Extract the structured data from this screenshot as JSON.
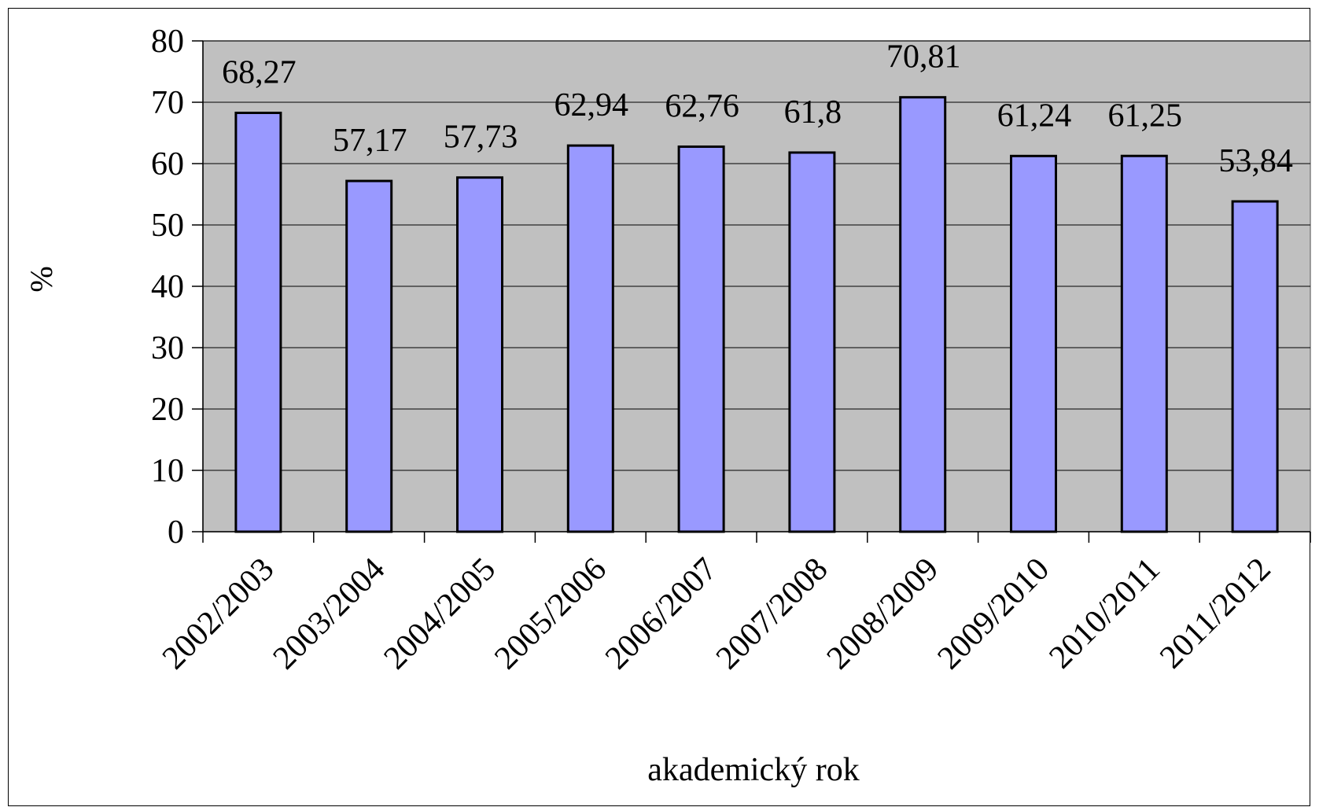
{
  "chart_data": {
    "type": "bar",
    "categories": [
      "2002/2003",
      "2003/2004",
      "2004/2005",
      "2005/2006",
      "2006/2007",
      "2007/2008",
      "2008/2009",
      "2009/2010",
      "2010/2011",
      "2011/2012"
    ],
    "values": [
      68.27,
      57.17,
      57.73,
      62.94,
      62.76,
      61.8,
      70.81,
      61.24,
      61.25,
      53.84
    ],
    "value_labels": [
      "68,27",
      "57,17",
      "57,73",
      "62,94",
      "62,76",
      "61,8",
      "70,81",
      "61,24",
      "61,25",
      "53,84"
    ],
    "xlabel": "akademický rok",
    "ylabel": "%",
    "ylim": [
      0,
      80
    ],
    "yticks": [
      0,
      10,
      20,
      30,
      40,
      50,
      60,
      70,
      80
    ],
    "ytick_labels": [
      "0",
      "10",
      "20",
      "30",
      "40",
      "50",
      "60",
      "70",
      "80"
    ],
    "grid": true,
    "legend": "none",
    "colors": {
      "bar": "#9999ff",
      "plot_background": "#c0c0c0",
      "gridline": "#000000"
    }
  }
}
